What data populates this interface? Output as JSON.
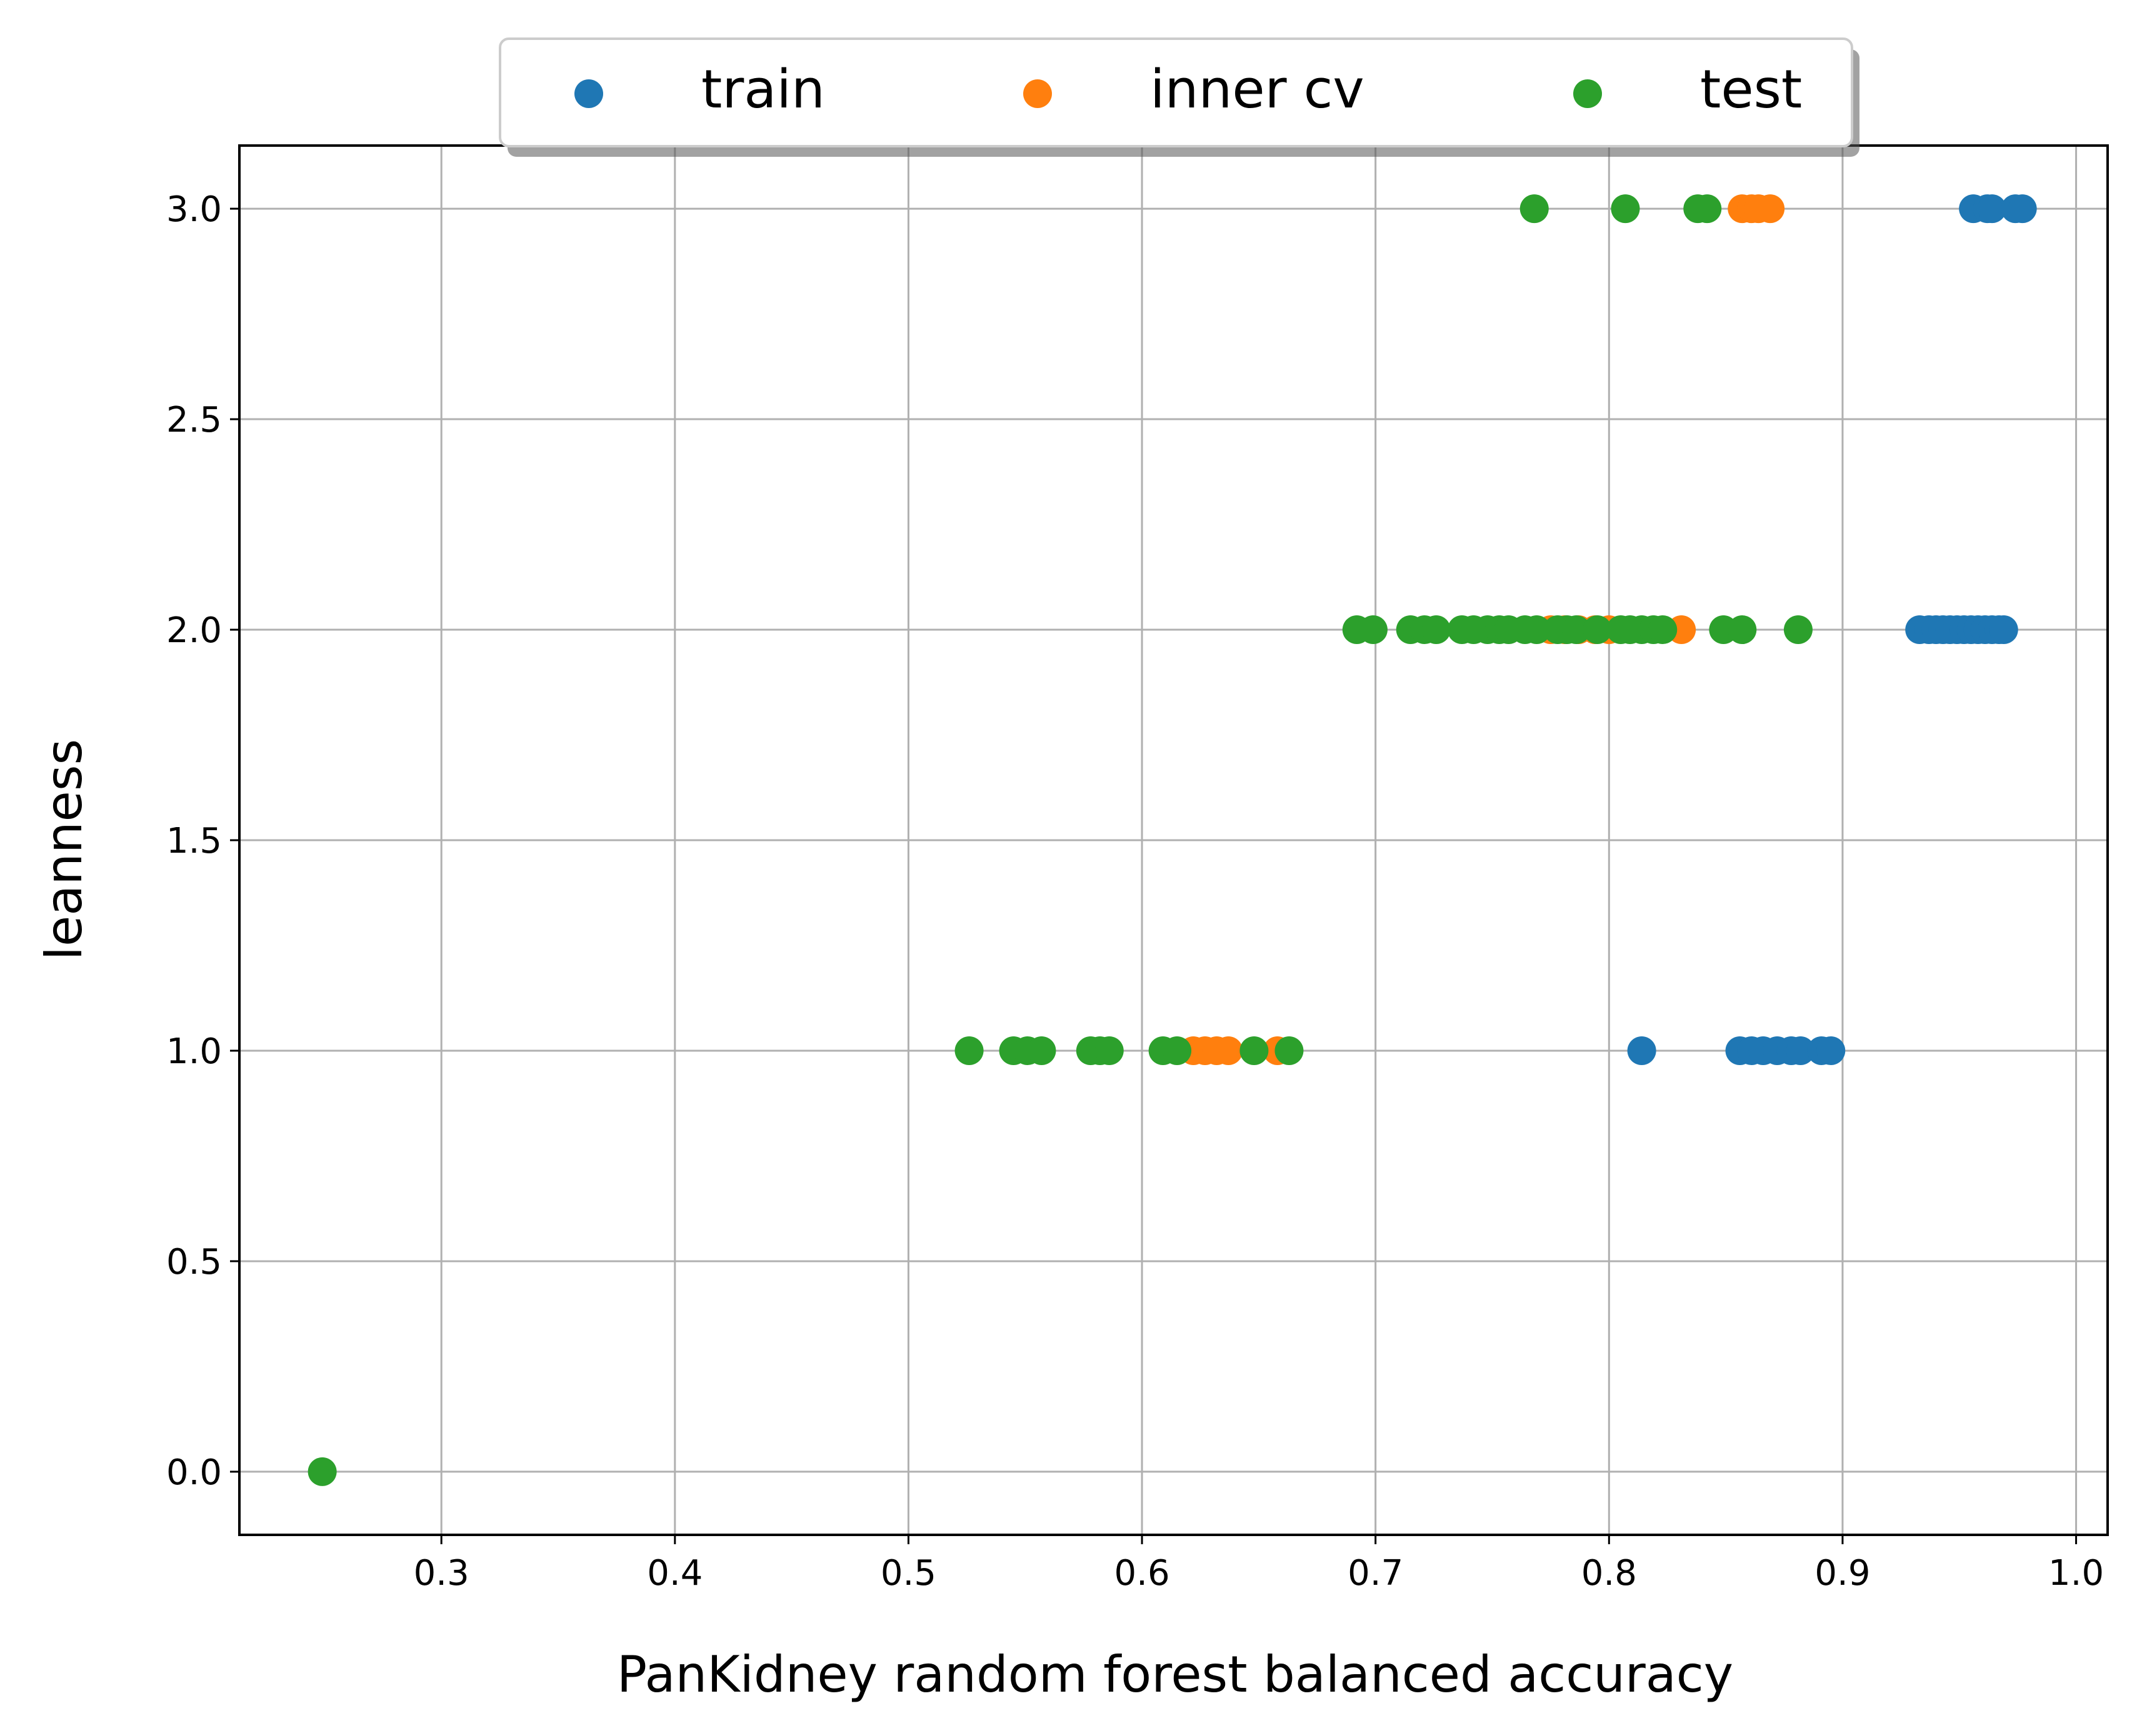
{
  "chart_data": {
    "type": "scatter",
    "title": "",
    "xlabel": "PanKidney random forest balanced accuracy",
    "ylabel": "leanness",
    "xlim": [
      0.2135,
      1.0135
    ],
    "ylim": [
      -0.15,
      3.15
    ],
    "xticks": [
      0.3,
      0.4,
      0.5,
      0.6,
      0.7,
      0.8,
      0.9,
      1.0
    ],
    "yticks": [
      0.0,
      0.5,
      1.0,
      1.5,
      2.0,
      2.5,
      3.0
    ],
    "xtick_labels": [
      "0.3",
      "0.4",
      "0.5",
      "0.6",
      "0.7",
      "0.8",
      "0.9",
      "1.0"
    ],
    "ytick_labels": [
      "0.0",
      "0.5",
      "1.0",
      "1.5",
      "2.0",
      "2.5",
      "3.0"
    ],
    "grid": true,
    "legend_position": "top-center",
    "series": [
      {
        "name": "train",
        "color": "#1f77b4",
        "points": [
          [
            0.956,
            3.0
          ],
          [
            0.962,
            3.0
          ],
          [
            0.964,
            3.0
          ],
          [
            0.974,
            3.0
          ],
          [
            0.977,
            3.0
          ],
          [
            0.933,
            2.0
          ],
          [
            0.937,
            2.0
          ],
          [
            0.94,
            2.0
          ],
          [
            0.943,
            2.0
          ],
          [
            0.946,
            2.0
          ],
          [
            0.949,
            2.0
          ],
          [
            0.952,
            2.0
          ],
          [
            0.955,
            2.0
          ],
          [
            0.958,
            2.0
          ],
          [
            0.961,
            2.0
          ],
          [
            0.964,
            2.0
          ],
          [
            0.967,
            2.0
          ],
          [
            0.969,
            2.0
          ],
          [
            0.814,
            1.0
          ],
          [
            0.856,
            1.0
          ],
          [
            0.861,
            1.0
          ],
          [
            0.866,
            1.0
          ],
          [
            0.872,
            1.0
          ],
          [
            0.878,
            1.0
          ],
          [
            0.882,
            1.0
          ],
          [
            0.891,
            1.0
          ],
          [
            0.895,
            1.0
          ]
        ]
      },
      {
        "name": "inner cv",
        "color": "#ff7f0e",
        "points": [
          [
            0.857,
            3.0
          ],
          [
            0.861,
            3.0
          ],
          [
            0.864,
            3.0
          ],
          [
            0.869,
            3.0
          ],
          [
            0.775,
            2.0
          ],
          [
            0.781,
            2.0
          ],
          [
            0.787,
            2.0
          ],
          [
            0.794,
            2.0
          ],
          [
            0.8,
            2.0
          ],
          [
            0.831,
            2.0
          ],
          [
            0.622,
            1.0
          ],
          [
            0.627,
            1.0
          ],
          [
            0.632,
            1.0
          ],
          [
            0.637,
            1.0
          ],
          [
            0.658,
            1.0
          ]
        ]
      },
      {
        "name": "test",
        "color": "#2ca02c",
        "points": [
          [
            0.768,
            3.0
          ],
          [
            0.807,
            3.0
          ],
          [
            0.838,
            3.0
          ],
          [
            0.842,
            3.0
          ],
          [
            0.692,
            2.0
          ],
          [
            0.699,
            2.0
          ],
          [
            0.715,
            2.0
          ],
          [
            0.721,
            2.0
          ],
          [
            0.726,
            2.0
          ],
          [
            0.737,
            2.0
          ],
          [
            0.742,
            2.0
          ],
          [
            0.748,
            2.0
          ],
          [
            0.753,
            2.0
          ],
          [
            0.757,
            2.0
          ],
          [
            0.764,
            2.0
          ],
          [
            0.769,
            2.0
          ],
          [
            0.778,
            2.0
          ],
          [
            0.782,
            2.0
          ],
          [
            0.786,
            2.0
          ],
          [
            0.795,
            2.0
          ],
          [
            0.805,
            2.0
          ],
          [
            0.809,
            2.0
          ],
          [
            0.814,
            2.0
          ],
          [
            0.819,
            2.0
          ],
          [
            0.823,
            2.0
          ],
          [
            0.849,
            2.0
          ],
          [
            0.857,
            2.0
          ],
          [
            0.881,
            2.0
          ],
          [
            0.526,
            1.0
          ],
          [
            0.545,
            1.0
          ],
          [
            0.551,
            1.0
          ],
          [
            0.557,
            1.0
          ],
          [
            0.578,
            1.0
          ],
          [
            0.582,
            1.0
          ],
          [
            0.586,
            1.0
          ],
          [
            0.609,
            1.0
          ],
          [
            0.615,
            1.0
          ],
          [
            0.648,
            1.0
          ],
          [
            0.663,
            1.0
          ],
          [
            0.249,
            0.0
          ]
        ]
      }
    ]
  }
}
